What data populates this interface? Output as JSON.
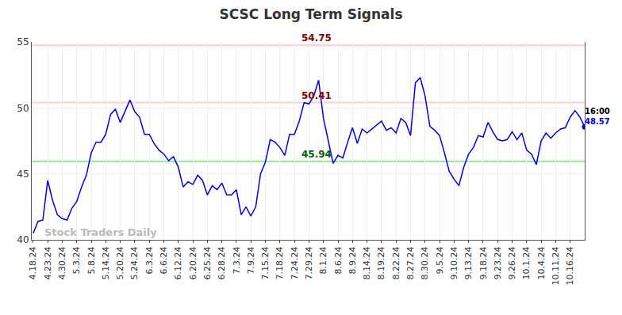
{
  "chart_data": {
    "type": "line",
    "title": "SCSC Long Term Signals",
    "categories": [
      "4.18.24",
      null,
      null,
      "4.23.24",
      null,
      null,
      "4.30.24",
      null,
      null,
      "5.3.24",
      null,
      null,
      "5.8.24",
      null,
      null,
      "5.14.24",
      null,
      null,
      "5.20.24",
      null,
      null,
      "5.24.24",
      null,
      null,
      "6.3.24",
      null,
      null,
      "6.6.24",
      null,
      null,
      "6.12.24",
      null,
      null,
      "6.20.24",
      null,
      null,
      "6.25.24",
      null,
      null,
      "6.28.24",
      null,
      null,
      "7.3.24",
      null,
      null,
      "7.9.24",
      null,
      null,
      "7.15.24",
      null,
      null,
      "7.18.24",
      null,
      null,
      "7.24.24",
      null,
      null,
      "7.29.24",
      null,
      null,
      "8.1.24",
      null,
      null,
      "8.6.24",
      null,
      null,
      "8.9.24",
      null,
      null,
      "8.14.24",
      null,
      null,
      "8.19.24",
      null,
      null,
      "8.22.24",
      null,
      null,
      "8.27.24",
      null,
      null,
      "8.30.24",
      null,
      null,
      "9.5.24",
      null,
      null,
      "9.10.24",
      null,
      null,
      "9.13.24",
      null,
      null,
      "9.18.24",
      null,
      null,
      "9.23.24",
      null,
      null,
      "9.26.24",
      null,
      null,
      "10.1.24",
      null,
      null,
      "10.4.24",
      null,
      null,
      "10.11.24",
      null,
      null,
      "10.16.24",
      null,
      null,
      null
    ],
    "values": [
      40.5,
      41.4,
      41.5,
      44.5,
      43.0,
      41.9,
      41.6,
      41.5,
      42.4,
      42.9,
      44.0,
      44.9,
      46.6,
      47.4,
      47.4,
      48.0,
      49.5,
      49.9,
      48.9,
      49.7,
      50.6,
      49.7,
      49.3,
      48.0,
      48.0,
      47.3,
      46.8,
      46.5,
      46.0,
      46.3,
      45.5,
      44.0,
      44.4,
      44.2,
      44.9,
      44.5,
      43.4,
      44.1,
      43.8,
      44.3,
      43.4,
      43.4,
      43.8,
      41.9,
      42.5,
      41.8,
      42.5,
      45.0,
      45.9,
      47.6,
      47.4,
      47.0,
      46.4,
      48.0,
      48.0,
      49.0,
      50.4,
      50.3,
      50.9,
      52.1,
      49.2,
      47.5,
      45.8,
      46.4,
      46.2,
      47.4,
      48.5,
      47.3,
      48.4,
      48.1,
      48.4,
      48.7,
      49.0,
      48.3,
      48.5,
      48.1,
      49.2,
      48.9,
      47.9,
      51.9,
      52.3,
      50.9,
      48.6,
      48.3,
      47.9,
      46.6,
      45.2,
      44.6,
      44.1,
      45.5,
      46.5,
      47.0,
      47.9,
      47.8,
      48.9,
      48.2,
      47.6,
      47.5,
      47.6,
      48.2,
      47.6,
      48.1,
      46.8,
      46.5,
      45.7,
      47.5,
      48.1,
      47.7,
      48.1,
      48.4,
      48.5,
      49.3,
      49.8,
      49.3,
      48.57
    ],
    "color": "#0000ee",
    "ylim": [
      40,
      55
    ],
    "yticks": [
      40,
      45,
      50,
      55
    ],
    "grid": true,
    "reference_lines": [
      {
        "value": 54.75,
        "label": "54.75",
        "color": "#ffcccc",
        "label_color": "#8b0000"
      },
      {
        "value": 50.41,
        "label": "50.41",
        "color": "#ffcccc",
        "label_color": "#8b0000"
      },
      {
        "value": 45.94,
        "label": "45.94",
        "color": "#90ee90",
        "label_color": "#006400"
      }
    ],
    "last_point": {
      "time": "16:00",
      "value": 48.57,
      "time_color": "#000000",
      "value_color": "#0000ee"
    },
    "watermark": "Stock Traders Daily"
  }
}
